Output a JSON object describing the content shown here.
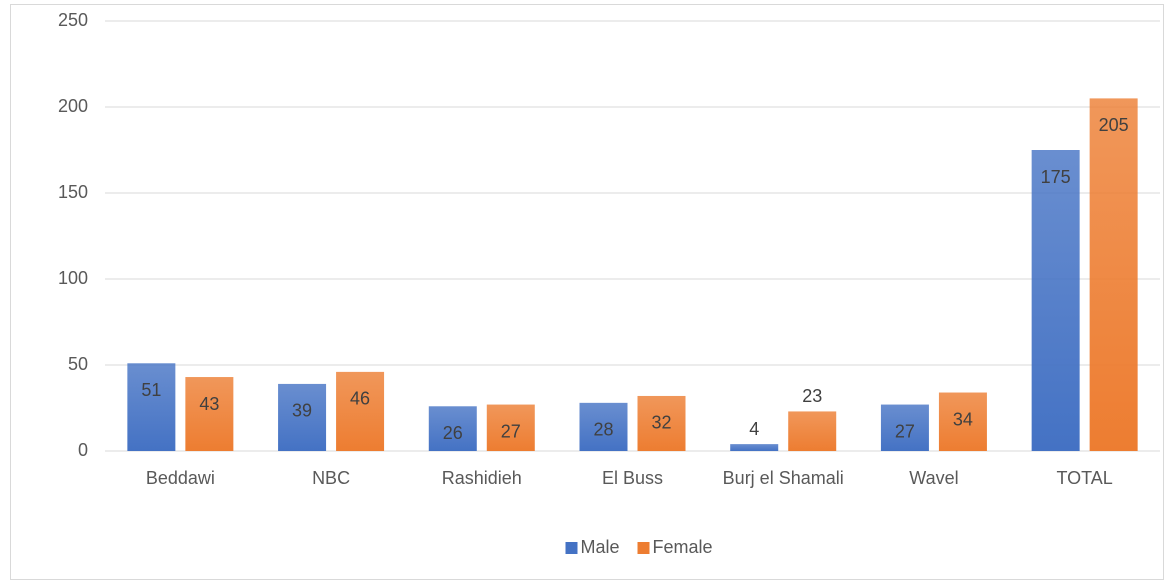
{
  "chart_data": {
    "type": "bar",
    "categories": [
      "Beddawi",
      "NBC",
      "Rashidieh",
      "El Buss",
      "Burj el Shamali",
      "Wavel",
      "TOTAL"
    ],
    "series": [
      {
        "name": "Male",
        "color": "#4472c4",
        "values": [
          51,
          39,
          26,
          28,
          4,
          27,
          175
        ]
      },
      {
        "name": "Female",
        "color": "#ed7d31",
        "values": [
          43,
          46,
          27,
          32,
          23,
          34,
          205
        ]
      }
    ],
    "ylim": [
      0,
      250
    ],
    "yticks": [
      0,
      50,
      100,
      150,
      200,
      250
    ],
    "grid": true,
    "legend": "bottom"
  }
}
